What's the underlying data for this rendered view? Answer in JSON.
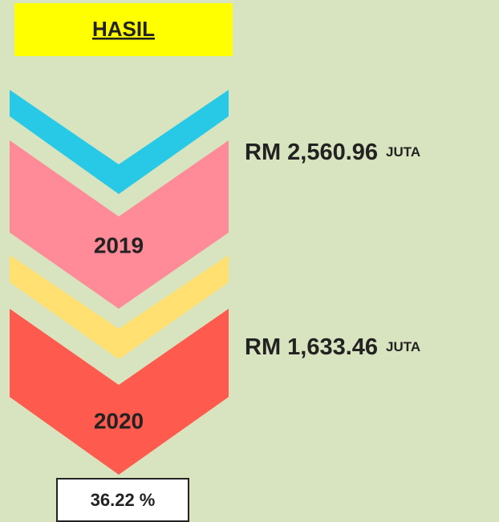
{
  "header": {
    "title": "HASIL"
  },
  "items": [
    {
      "year": "2019",
      "amount": "RM 2,560.96",
      "unit": "JUTA"
    },
    {
      "year": "2020",
      "amount": "RM 1,633.46",
      "unit": "JUTA"
    }
  ],
  "change": "36.22 %"
}
